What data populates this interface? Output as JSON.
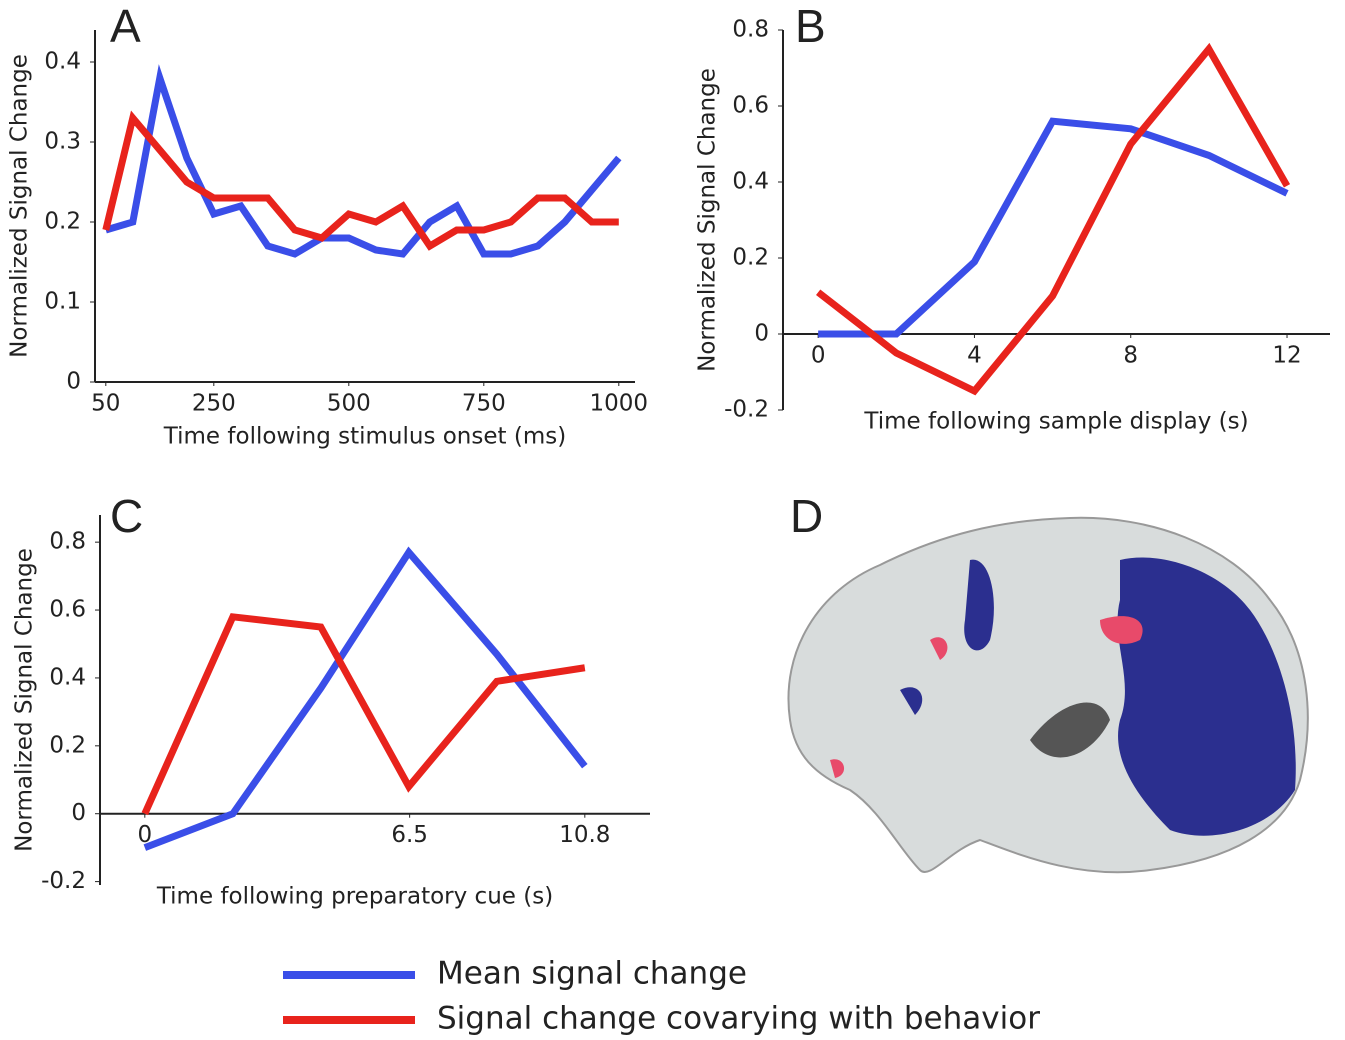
{
  "chart_data": [
    {
      "type": "line",
      "label": "A",
      "xlabel": "Time following stimulus onset (ms)",
      "ylabel": "Normalized Signal Change",
      "x": [
        50,
        100,
        150,
        200,
        250,
        300,
        350,
        400,
        450,
        500,
        550,
        600,
        650,
        700,
        750,
        800,
        850,
        900,
        950,
        1000
      ],
      "series": [
        {
          "name": "Mean signal change",
          "color": "#3a4ee8",
          "values": [
            0.19,
            0.2,
            0.38,
            0.28,
            0.21,
            0.22,
            0.17,
            0.16,
            0.18,
            0.18,
            0.165,
            0.16,
            0.2,
            0.22,
            0.16,
            0.16,
            0.17,
            0.2,
            0.24,
            0.28
          ]
        },
        {
          "name": "Signal change covarying with behavior",
          "color": "#e8231c",
          "values": [
            0.19,
            0.33,
            0.29,
            0.25,
            0.23,
            0.23,
            0.23,
            0.19,
            0.18,
            0.21,
            0.2,
            0.22,
            0.17,
            0.19,
            0.19,
            0.2,
            0.23,
            0.23,
            0.2,
            0.2
          ]
        }
      ],
      "xlim": [
        30,
        1030
      ],
      "xticks": [
        50,
        250,
        500,
        750,
        1000
      ],
      "ylim": [
        0,
        0.44
      ],
      "yticks": [
        0,
        0.1,
        0.2,
        0.3,
        0.4
      ]
    },
    {
      "type": "line",
      "label": "B",
      "xlabel": "Time following sample display (s)",
      "ylabel": "Normalized Signal Change",
      "x": [
        0,
        2,
        4,
        6,
        8,
        10,
        12
      ],
      "series": [
        {
          "color": "#3a4ee8",
          "values": [
            0,
            0,
            0.19,
            0.56,
            0.54,
            0.47,
            0.37
          ]
        },
        {
          "color": "#e8231c",
          "values": [
            0.11,
            -0.05,
            -0.15,
            0.1,
            0.5,
            0.75,
            0.39
          ]
        }
      ],
      "xlim": [
        -0.9,
        13.1
      ],
      "xticks": [
        0,
        4,
        8,
        12
      ],
      "ylim": [
        -0.2,
        0.8
      ],
      "yticks": [
        -0.2,
        0,
        0.2,
        0.4,
        0.6,
        0.8
      ]
    },
    {
      "type": "line",
      "label": "C",
      "xlabel": "Time following preparatory cue (s)",
      "ylabel": "Normalized Signal Change",
      "x": [
        0,
        2.16,
        4.32,
        6.48,
        8.64,
        10.8
      ],
      "series": [
        {
          "color": "#3a4ee8",
          "values": [
            -0.1,
            0,
            0.37,
            0.77,
            0.47,
            0.14
          ]
        },
        {
          "color": "#e8231c",
          "values": [
            0,
            0.58,
            0.55,
            0.08,
            0.39,
            0.43
          ]
        }
      ],
      "xlim": [
        -1.1,
        12.4
      ],
      "xticks": [
        0,
        6.5,
        10.8
      ],
      "ylim": [
        -0.21,
        0.88
      ],
      "yticks": [
        -0.2,
        0,
        0.2,
        0.4,
        0.6,
        0.8
      ]
    }
  ],
  "panel_d": {
    "label": "D"
  }
}
